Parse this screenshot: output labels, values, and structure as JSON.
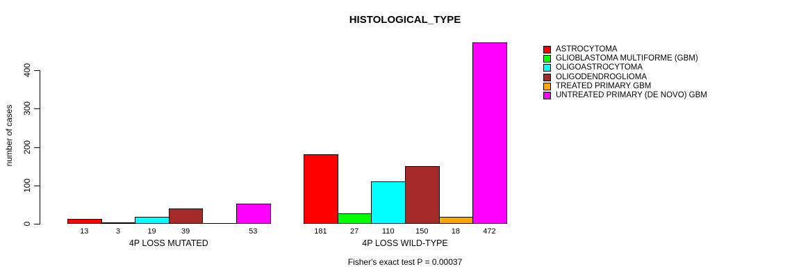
{
  "chart_data": {
    "type": "bar",
    "title": "HISTOLOGICAL_TYPE",
    "ylabel": "number of cases",
    "xlabel": "",
    "categories": [
      "4P LOSS MUTATED",
      "4P LOSS WILD-TYPE"
    ],
    "series": [
      {
        "name": "ASTROCYTOMA",
        "color": "#FF0000",
        "values": [
          13,
          181
        ]
      },
      {
        "name": "GLIOBLASTOMA MULTIFORME (GBM)",
        "color": "#00FF00",
        "values": [
          3,
          27
        ]
      },
      {
        "name": "OLIGOASTROCYTOMA",
        "color": "#00FFFF",
        "values": [
          19,
          110
        ]
      },
      {
        "name": "OLIGODENDROGLIOMA",
        "color": "#A52A2A",
        "values": [
          39,
          150
        ]
      },
      {
        "name": "TREATED PRIMARY GBM",
        "color": "#FFA500",
        "values": [
          null,
          18
        ]
      },
      {
        "name": "UNTREATED PRIMARY (DE NOVO) GBM",
        "color": "#FF00FF",
        "values": [
          53,
          472
        ]
      }
    ],
    "axis_ticks": [
      0,
      100,
      200,
      300,
      400
    ],
    "ylim": [
      0,
      472
    ],
    "grid": false,
    "legend_position": "top-right",
    "annotation": "Fisher's exact test P = 0.00037"
  }
}
